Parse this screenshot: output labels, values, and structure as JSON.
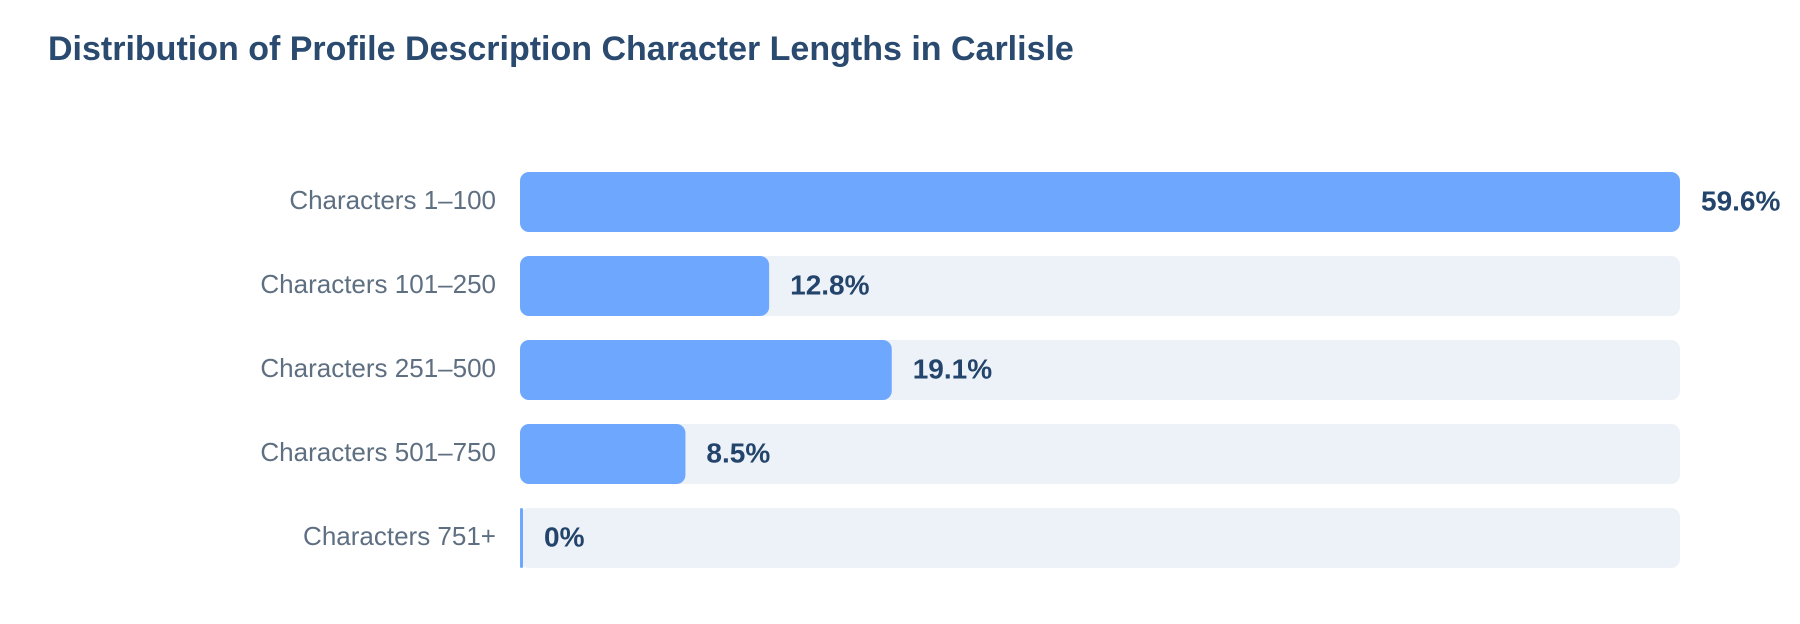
{
  "chart_data": {
    "type": "bar",
    "orientation": "horizontal",
    "title": "Distribution of Profile Description Character Lengths in Carlisle",
    "categories": [
      "Characters 1–100",
      "Characters 101–250",
      "Characters 251–500",
      "Characters 501–750",
      "Characters 751+"
    ],
    "values": [
      59.6,
      12.8,
      19.1,
      8.5,
      0
    ],
    "value_labels": [
      "59.6%",
      "12.8%",
      "19.1%",
      "8.5%",
      "0%"
    ],
    "color": "#6ea8fe"
  }
}
